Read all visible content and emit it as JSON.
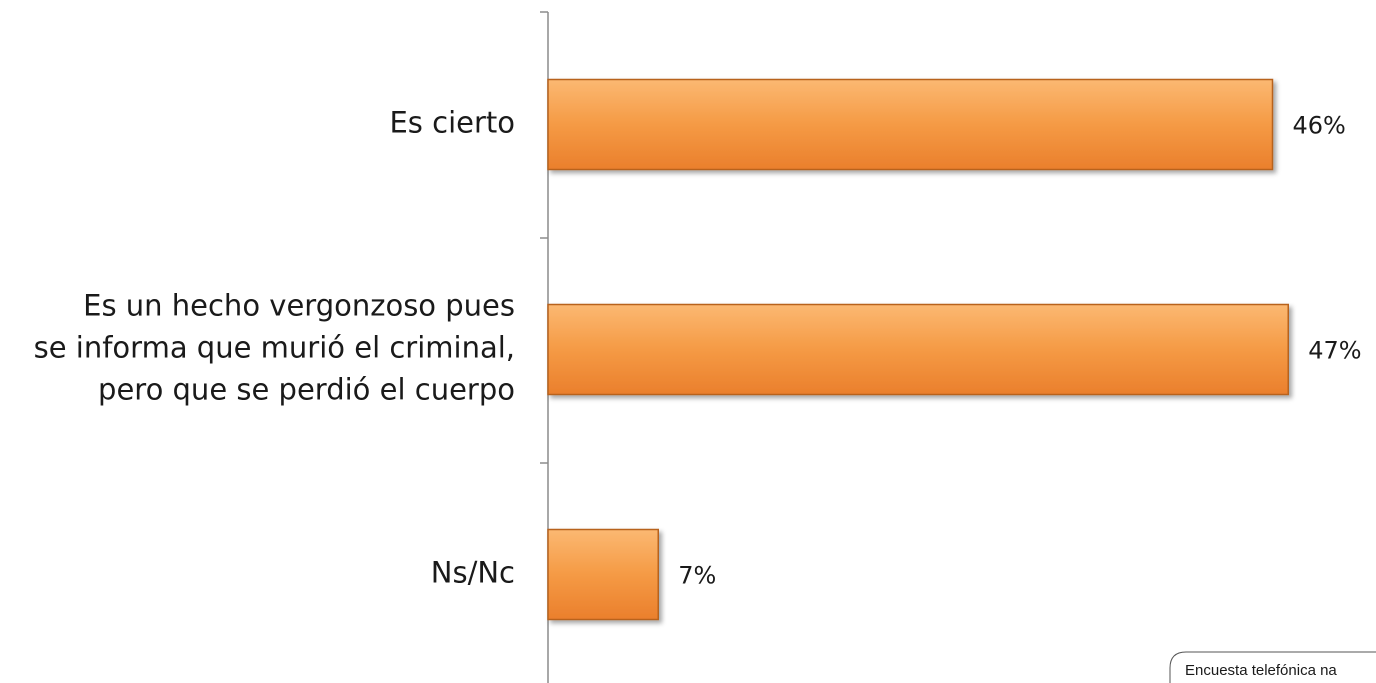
{
  "chart_data": {
    "type": "bar",
    "orientation": "horizontal",
    "categories": [
      [
        "Es cierto"
      ],
      [
        "Es un hecho vergonzoso pues",
        "se informa que murió el criminal,",
        "pero que se perdió el cuerpo"
      ],
      [
        "Ns/Nc"
      ]
    ],
    "values": [
      46,
      47,
      7
    ],
    "value_labels": [
      "46%",
      "47%",
      "7%"
    ],
    "color": "#f29640",
    "note": "Encuesta telefónica na"
  }
}
